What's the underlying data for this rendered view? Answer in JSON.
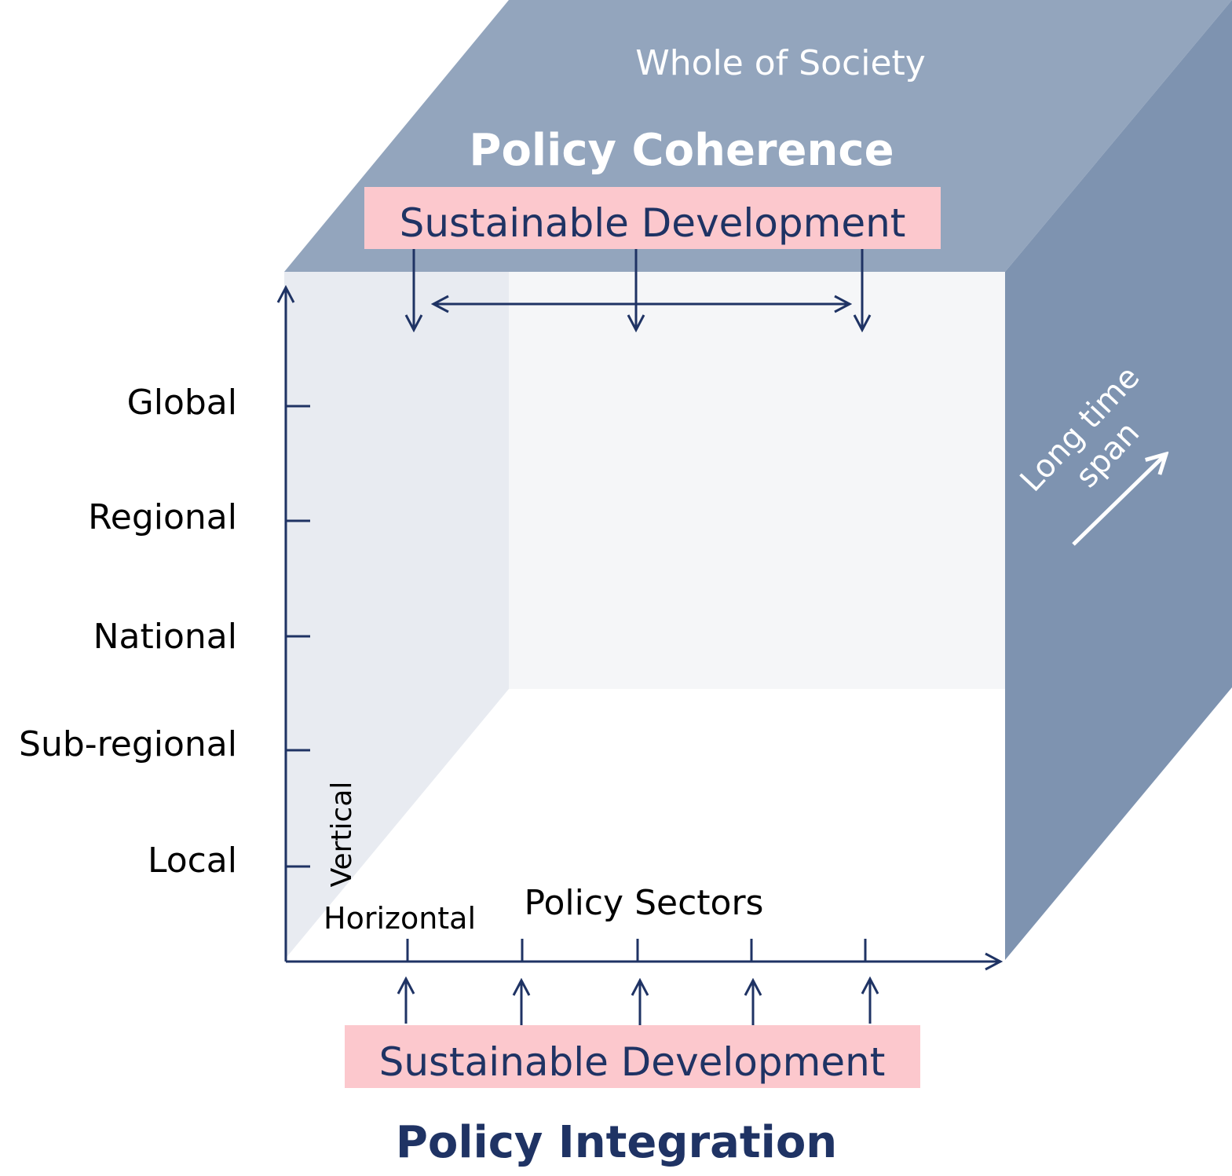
{
  "top_face": {
    "whole_of_society": "Whole of Society",
    "policy_coherence": "Policy Coherence",
    "sustainable_development": "Sustainable Development"
  },
  "right_face": {
    "long_time": "Long time",
    "span": "span"
  },
  "vertical_axis": {
    "label": "Vertical",
    "levels": [
      "Global",
      "Regional",
      "National",
      "Sub-regional",
      "Local"
    ]
  },
  "horizontal_axis": {
    "label": "Horizontal",
    "title": "Policy Sectors"
  },
  "bottom": {
    "sustainable_development": "Sustainable Development",
    "policy_integration": "Policy Integration"
  },
  "colors": {
    "top_face": "#93a5bd",
    "right_face": "#7e93b0",
    "left_face": "#e8ebf1",
    "back_face": "#f5f6f8",
    "highlight_box": "#fcc8cd",
    "navy": "#1f3364"
  }
}
